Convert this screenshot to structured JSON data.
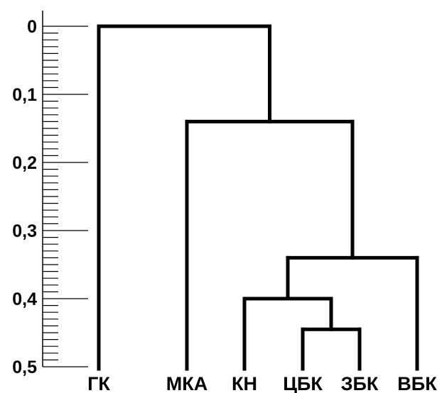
{
  "chart_data": {
    "type": "dendrogram",
    "title": "",
    "y_axis": {
      "range": [
        0,
        0.5
      ],
      "inverted": true,
      "major_ticks": [
        0,
        0.1,
        0.2,
        0.3,
        0.4,
        0.5
      ],
      "major_tick_labels": [
        "0",
        "0,1",
        "0,2",
        "0,3",
        "0,4",
        "0,5"
      ],
      "minor_tick_step": 0.01
    },
    "leaves": [
      "ГК",
      "МКА",
      "КН",
      "ЦБК",
      "ЗБК",
      "ВБК"
    ],
    "merges": [
      {
        "id": "m1",
        "left": "ЦБК",
        "right": "ЗБК",
        "height": 0.445
      },
      {
        "id": "m2",
        "left": "КН",
        "right": "m1",
        "height": 0.4
      },
      {
        "id": "m3",
        "left": "m2",
        "right": "ВБК",
        "height": 0.34
      },
      {
        "id": "m4",
        "left": "МКА",
        "right": "m3",
        "height": 0.14
      },
      {
        "id": "m5",
        "left": "ГК",
        "right": "m4",
        "height": 0.0
      }
    ],
    "line_color": "#000000",
    "background": "#ffffff"
  }
}
